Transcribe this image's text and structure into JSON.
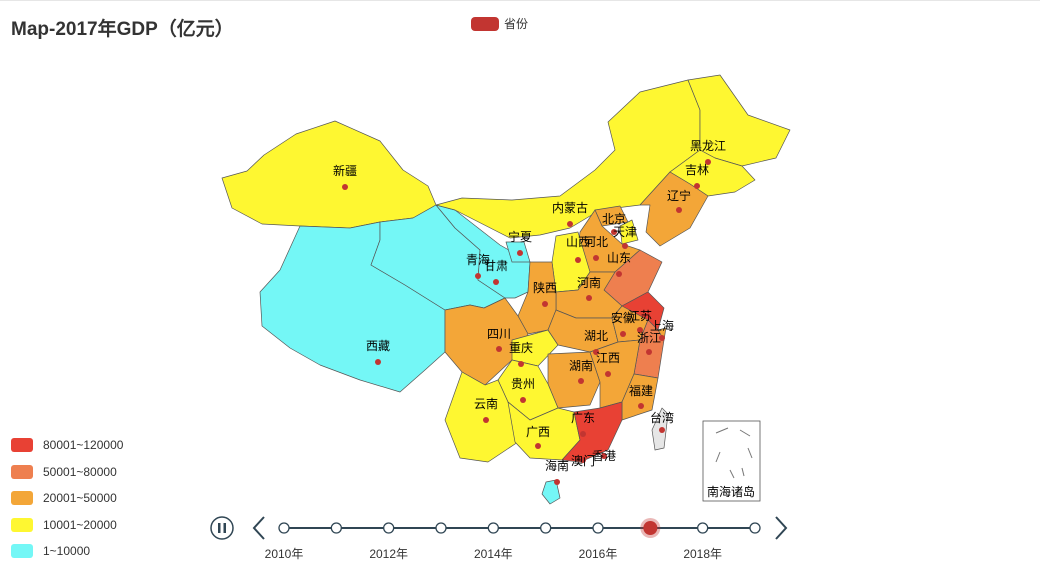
{
  "title": "Map-2017年GDP（亿元）",
  "legend": {
    "series_name": "省份",
    "color": "#c23531"
  },
  "visual_map": {
    "pieces": [
      {
        "label": "80001~120000",
        "color": "#e84134"
      },
      {
        "label": "50001~80000",
        "color": "#ee7f4f"
      },
      {
        "label": "20001~50000",
        "color": "#f3a638"
      },
      {
        "label": "10001~20000",
        "color": "#fef731"
      },
      {
        "label": "1~10000",
        "color": "#74f7f6"
      }
    ]
  },
  "timeline": {
    "labels": [
      "2010年",
      "2012年",
      "2014年",
      "2016年",
      "2018年"
    ],
    "points": 10,
    "current_index": 7,
    "play_icon": "pause-icon"
  },
  "chart_data": {
    "type": "map",
    "title": "Map-2017年GDP（亿元）",
    "series": [
      {
        "name": "省份"
      }
    ],
    "regions": [
      {
        "name": "新疆",
        "range": "10001~20000"
      },
      {
        "name": "西藏",
        "range": "1~10000"
      },
      {
        "name": "青海",
        "range": "1~10000"
      },
      {
        "name": "甘肃",
        "range": "1~10000"
      },
      {
        "name": "宁夏",
        "range": "1~10000"
      },
      {
        "name": "内蒙古",
        "range": "10001~20000"
      },
      {
        "name": "黑龙江",
        "range": "10001~20000"
      },
      {
        "name": "吉林",
        "range": "10001~20000"
      },
      {
        "name": "辽宁",
        "range": "20001~50000"
      },
      {
        "name": "北京",
        "range": "20001~50000"
      },
      {
        "name": "天津",
        "range": "10001~20000"
      },
      {
        "name": "河北",
        "range": "20001~50000"
      },
      {
        "name": "山西",
        "range": "10001~20000"
      },
      {
        "name": "山东",
        "range": "50001~80000"
      },
      {
        "name": "河南",
        "range": "20001~50000"
      },
      {
        "name": "陕西",
        "range": "20001~50000"
      },
      {
        "name": "四川",
        "range": "20001~50000"
      },
      {
        "name": "重庆",
        "range": "10001~20000"
      },
      {
        "name": "湖北",
        "range": "20001~50000"
      },
      {
        "name": "安徽",
        "range": "20001~50000"
      },
      {
        "name": "江苏",
        "range": "80001~120000"
      },
      {
        "name": "上海",
        "range": "20001~50000"
      },
      {
        "name": "浙江",
        "range": "50001~80000"
      },
      {
        "name": "湖南",
        "range": "20001~50000"
      },
      {
        "name": "江西",
        "range": "20001~50000"
      },
      {
        "name": "福建",
        "range": "20001~50000"
      },
      {
        "name": "贵州",
        "range": "10001~20000"
      },
      {
        "name": "云南",
        "range": "10001~20000"
      },
      {
        "name": "广西",
        "range": "10001~20000"
      },
      {
        "name": "广东",
        "range": "80001~120000"
      },
      {
        "name": "海南",
        "range": "1~10000"
      },
      {
        "name": "台湾",
        "range": ""
      },
      {
        "name": "香港",
        "range": ""
      },
      {
        "name": "澳门",
        "range": ""
      }
    ],
    "inset_label": "南海诸岛"
  }
}
